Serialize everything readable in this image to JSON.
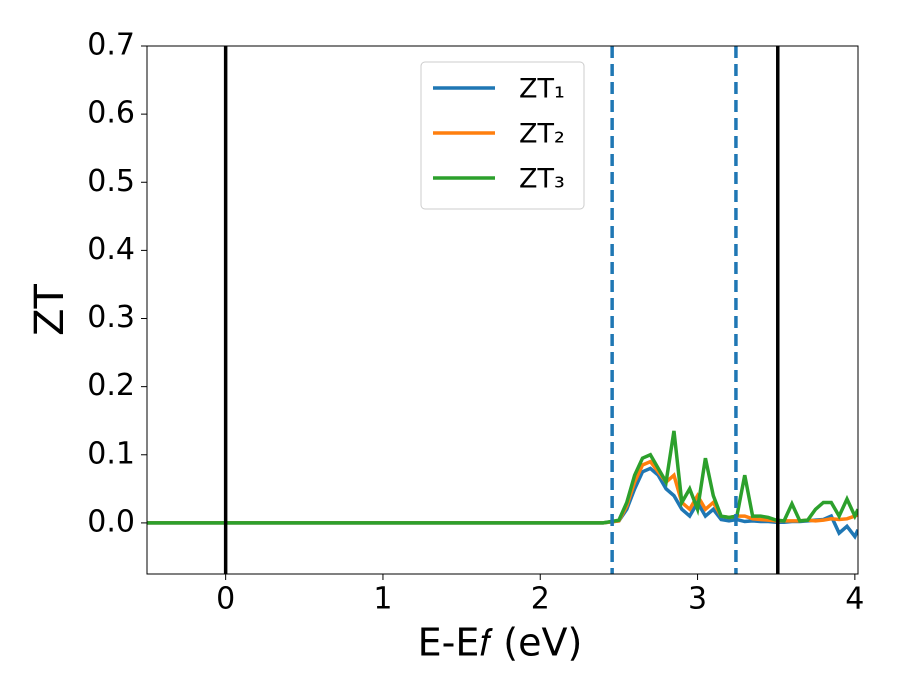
{
  "chart_data": {
    "type": "line",
    "xlabel": "E-E𝑓 (eV)",
    "ylabel": "ZT",
    "x": [
      -0.5,
      2.4,
      2.5,
      2.55,
      2.6,
      2.65,
      2.7,
      2.75,
      2.8,
      2.85,
      2.9,
      2.95,
      3.0,
      3.05,
      3.1,
      3.15,
      3.2,
      3.25,
      3.3,
      3.35,
      3.4,
      3.45,
      3.5,
      3.55,
      3.6,
      3.65,
      3.7,
      3.75,
      3.8,
      3.85,
      3.9,
      3.95,
      4.0,
      4.02
    ],
    "series": [
      {
        "name": "ZT₁",
        "color": "#1f77b4",
        "values": [
          0,
          0,
          0.003,
          0.02,
          0.05,
          0.075,
          0.08,
          0.07,
          0.05,
          0.04,
          0.02,
          0.01,
          0.03,
          0.01,
          0.02,
          0.005,
          0.003,
          0.005,
          0.002,
          0.003,
          0.002,
          0.002,
          0.001,
          0.001,
          0.002,
          0.002,
          0.003,
          0.004,
          0.005,
          0.01,
          -0.015,
          -0.005,
          -0.02,
          -0.01
        ]
      },
      {
        "name": "ZT₂",
        "color": "#ff7f0e",
        "values": [
          0,
          0,
          0.003,
          0.025,
          0.06,
          0.085,
          0.09,
          0.075,
          0.06,
          0.07,
          0.03,
          0.02,
          0.04,
          0.02,
          0.03,
          0.01,
          0.008,
          0.01,
          0.01,
          0.006,
          0.005,
          0.004,
          0.003,
          0.003,
          0.003,
          0.003,
          0.004,
          0.003,
          0.004,
          0.006,
          0.005,
          0.006,
          0.01,
          0.012
        ]
      },
      {
        "name": "ZT₃",
        "color": "#2ca02c",
        "values": [
          0,
          0,
          0.004,
          0.03,
          0.07,
          0.095,
          0.1,
          0.08,
          0.06,
          0.135,
          0.03,
          0.05,
          0.02,
          0.095,
          0.04,
          0.01,
          0.008,
          0.01,
          0.07,
          0.01,
          0.01,
          0.008,
          0.004,
          0.003,
          0.028,
          0.003,
          0.004,
          0.02,
          0.03,
          0.03,
          0.01,
          0.035,
          0.01,
          0.02
        ]
      }
    ],
    "vlines": [
      {
        "x": 0,
        "color": "#000000",
        "style": "solid"
      },
      {
        "x": 3.51,
        "color": "#000000",
        "style": "solid"
      },
      {
        "x": 2.457,
        "color": "#1f77b4",
        "style": "dashed"
      },
      {
        "x": 3.244,
        "color": "#1f77b4",
        "style": "dashed"
      }
    ],
    "xlim": [
      -0.5,
      4.02
    ],
    "ylim": [
      -0.075,
      0.7
    ],
    "xticks": [
      0,
      1,
      2,
      3,
      4
    ],
    "yticks": [
      {
        "value": 0,
        "label": "0.0"
      },
      0.1,
      0.2,
      0.3,
      0.4,
      0.5,
      0.6,
      0.7
    ],
    "legend": "upper center",
    "grid": false
  }
}
